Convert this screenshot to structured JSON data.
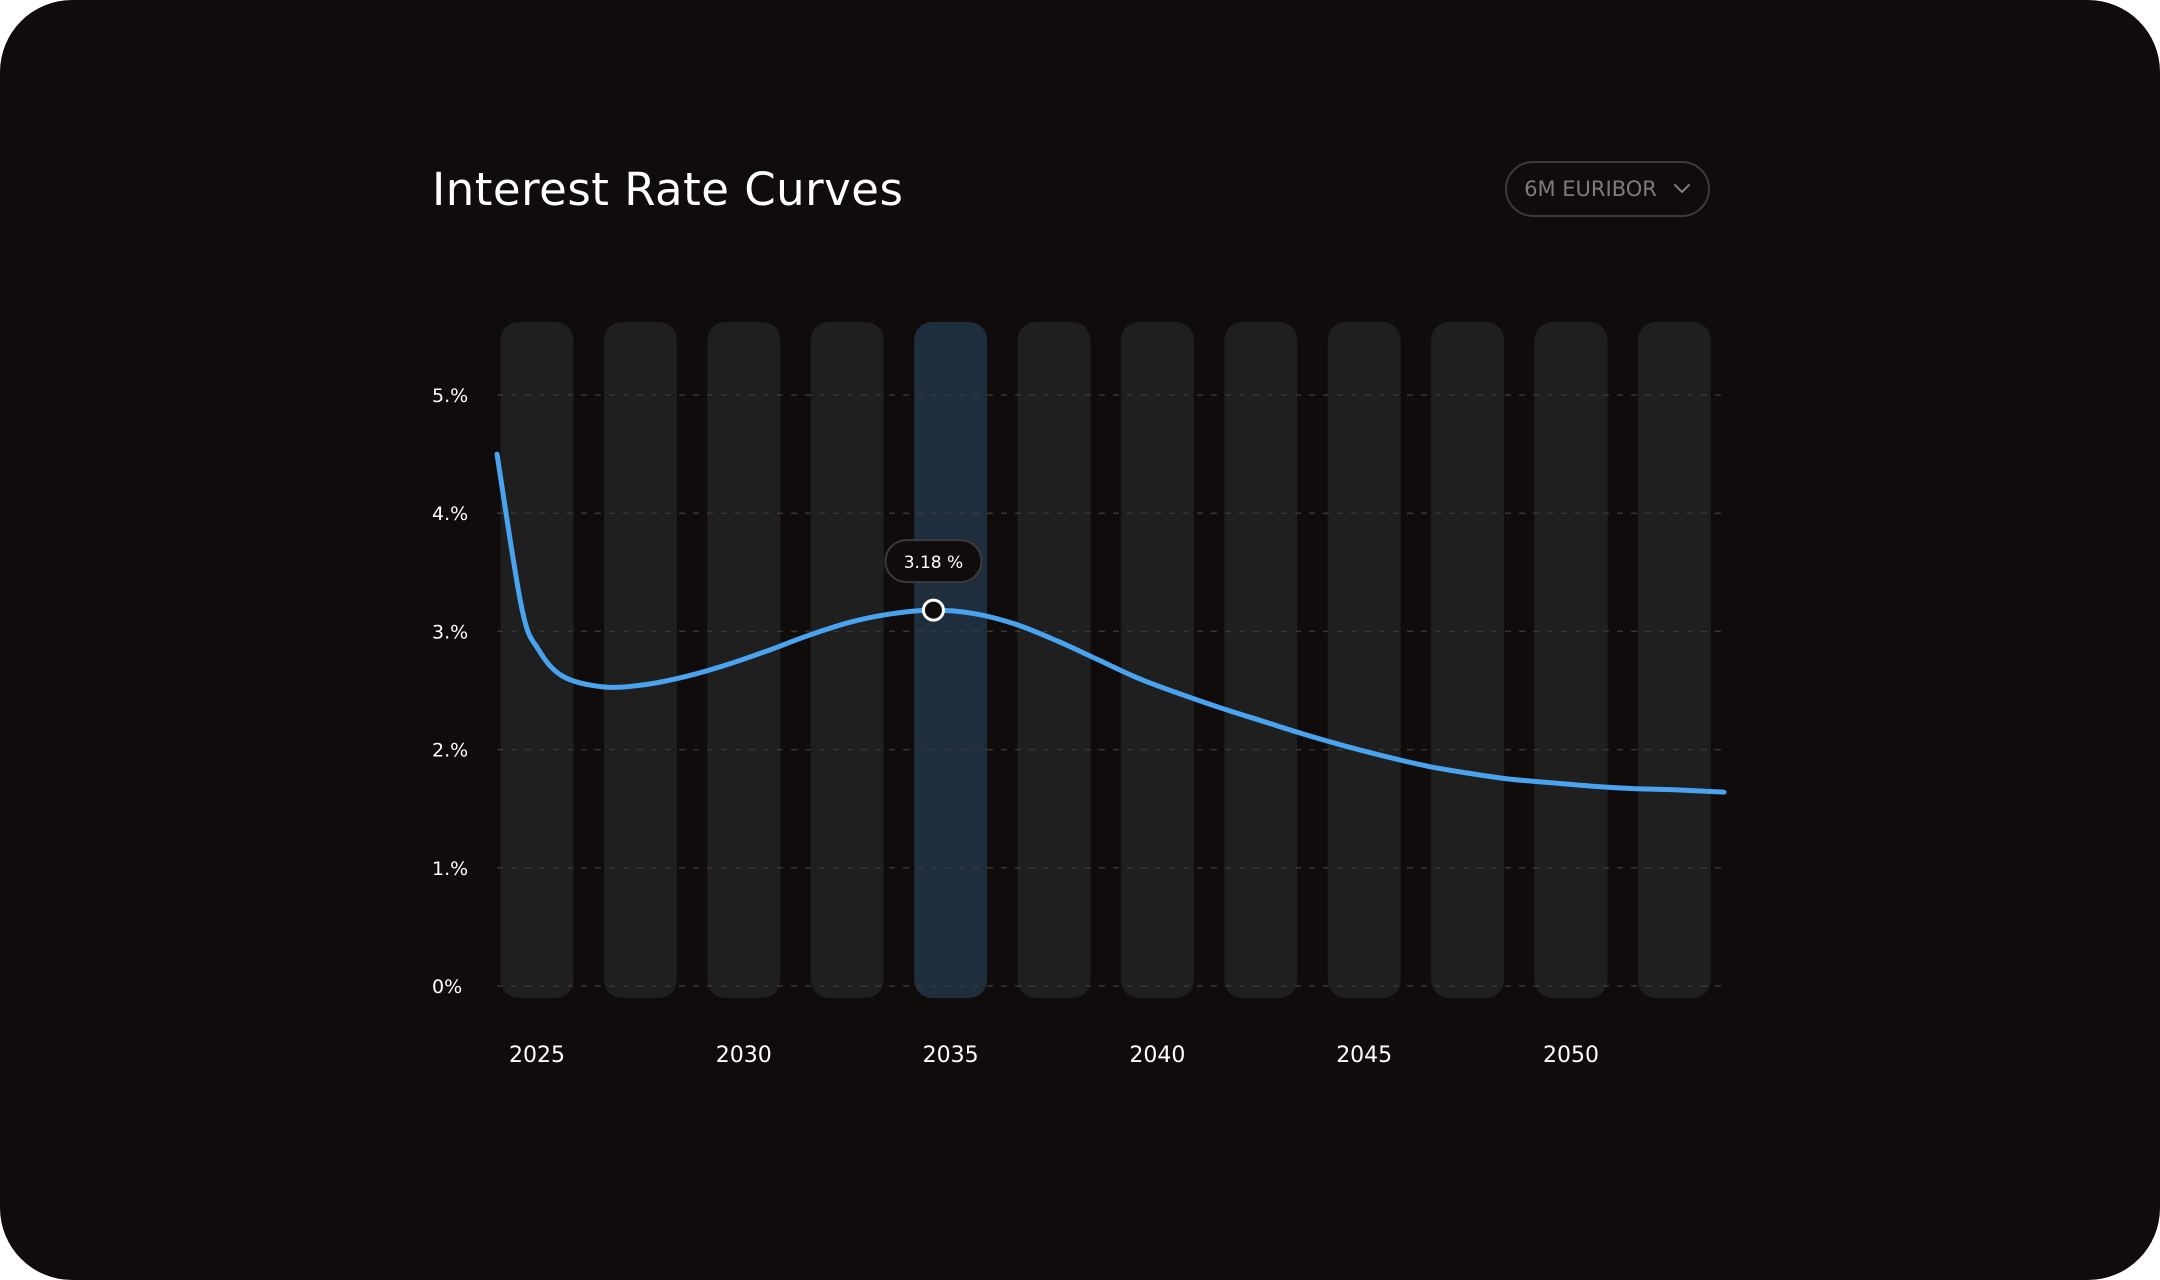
{
  "header": {
    "title": "Interest Rate Curves",
    "selector_value": "6M EURIBOR"
  },
  "colors": {
    "background": "#110c0c",
    "column": "#1f1f1f",
    "column_highlight": "#1e2e3c",
    "line": "#4aa3ee",
    "grid": "#3a3636",
    "text": "#ffffff",
    "muted": "#807a7a"
  },
  "chart_data": {
    "type": "line",
    "title": "Interest Rate Curves",
    "xlabel": "",
    "ylabel": "",
    "xlim": [
      2024.4,
      2054.2
    ],
    "ylim": [
      0,
      5
    ],
    "grid": true,
    "y_ticks": [
      {
        "value": 5,
        "label": "5.%"
      },
      {
        "value": 4,
        "label": "4.%"
      },
      {
        "value": 3,
        "label": "3.%"
      },
      {
        "value": 2,
        "label": "2.%"
      },
      {
        "value": 1,
        "label": "1.%"
      },
      {
        "value": 0,
        "label": "0%"
      }
    ],
    "x_ticks": [
      {
        "value": 2025,
        "label": "2025"
      },
      {
        "value": 2030,
        "label": "2030"
      },
      {
        "value": 2035,
        "label": "2035"
      },
      {
        "value": 2040,
        "label": "2040"
      },
      {
        "value": 2045,
        "label": "2045"
      },
      {
        "value": 2050,
        "label": "2050"
      }
    ],
    "column_years": [
      2025,
      2027.5,
      2030,
      2032.5,
      2035,
      2037.5,
      2040,
      2042.5,
      2045,
      2047.5,
      2050,
      2052.5
    ],
    "highlight_column": 2035,
    "series": [
      {
        "x": [
          2024.4,
          2025.0,
          2025.4,
          2026.0,
          2027.0,
          2028.0,
          2029.0,
          2030.0,
          2031.0,
          2032.0,
          2033.0,
          2034.0,
          2035.0,
          2036.0,
          2037.0,
          2038.0,
          2039.0,
          2040.0,
          2041.0,
          2042.0,
          2043.0,
          2044.0,
          2045.0,
          2046.0,
          2047.0,
          2048.0,
          2049.0,
          2050.0,
          2051.0,
          2052.0,
          2053.0,
          2054.2
        ],
        "y": [
          4.5,
          3.2,
          2.85,
          2.62,
          2.53,
          2.55,
          2.62,
          2.72,
          2.84,
          2.97,
          3.08,
          3.15,
          3.18,
          3.15,
          3.06,
          2.92,
          2.76,
          2.6,
          2.47,
          2.35,
          2.24,
          2.13,
          2.03,
          1.94,
          1.86,
          1.8,
          1.75,
          1.72,
          1.69,
          1.67,
          1.66,
          1.64
        ]
      }
    ],
    "annotation": {
      "x": 2035,
      "y": 3.18,
      "label": "3.18 %"
    }
  }
}
